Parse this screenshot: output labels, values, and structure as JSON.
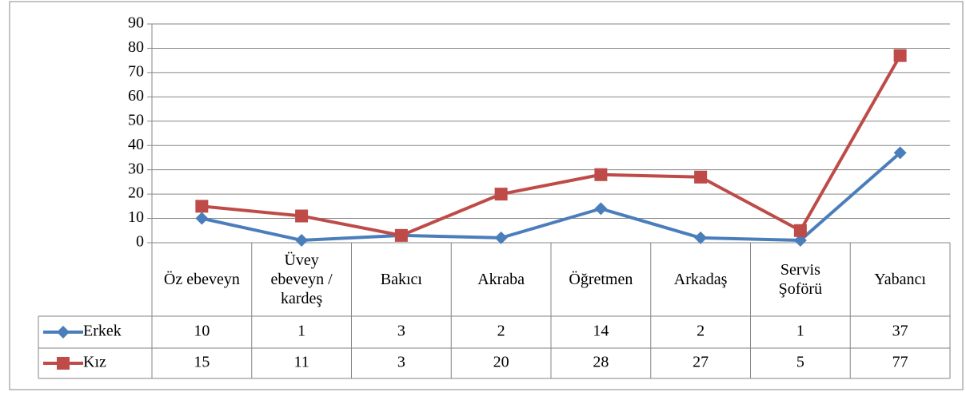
{
  "chart_data": {
    "type": "line",
    "categories": [
      "Öz ebeveyn",
      "Üvey ebeveyn / kardeş",
      "Bakıcı",
      "Akraba",
      "Öğretmen",
      "Arkadaş",
      "Servis Şoförü",
      "Yabancı"
    ],
    "series": [
      {
        "name": "Erkek",
        "color": "#4a7ebb",
        "marker": "diamond",
        "values": [
          10,
          1,
          3,
          2,
          14,
          2,
          1,
          37
        ]
      },
      {
        "name": "Kız",
        "color": "#be4b48",
        "marker": "square",
        "values": [
          15,
          11,
          3,
          20,
          28,
          27,
          5,
          77
        ]
      }
    ],
    "ylim": [
      0,
      90
    ],
    "yticks": [
      0,
      10,
      20,
      30,
      40,
      50,
      60,
      70,
      80,
      90
    ],
    "grid": true,
    "data_table": true
  }
}
